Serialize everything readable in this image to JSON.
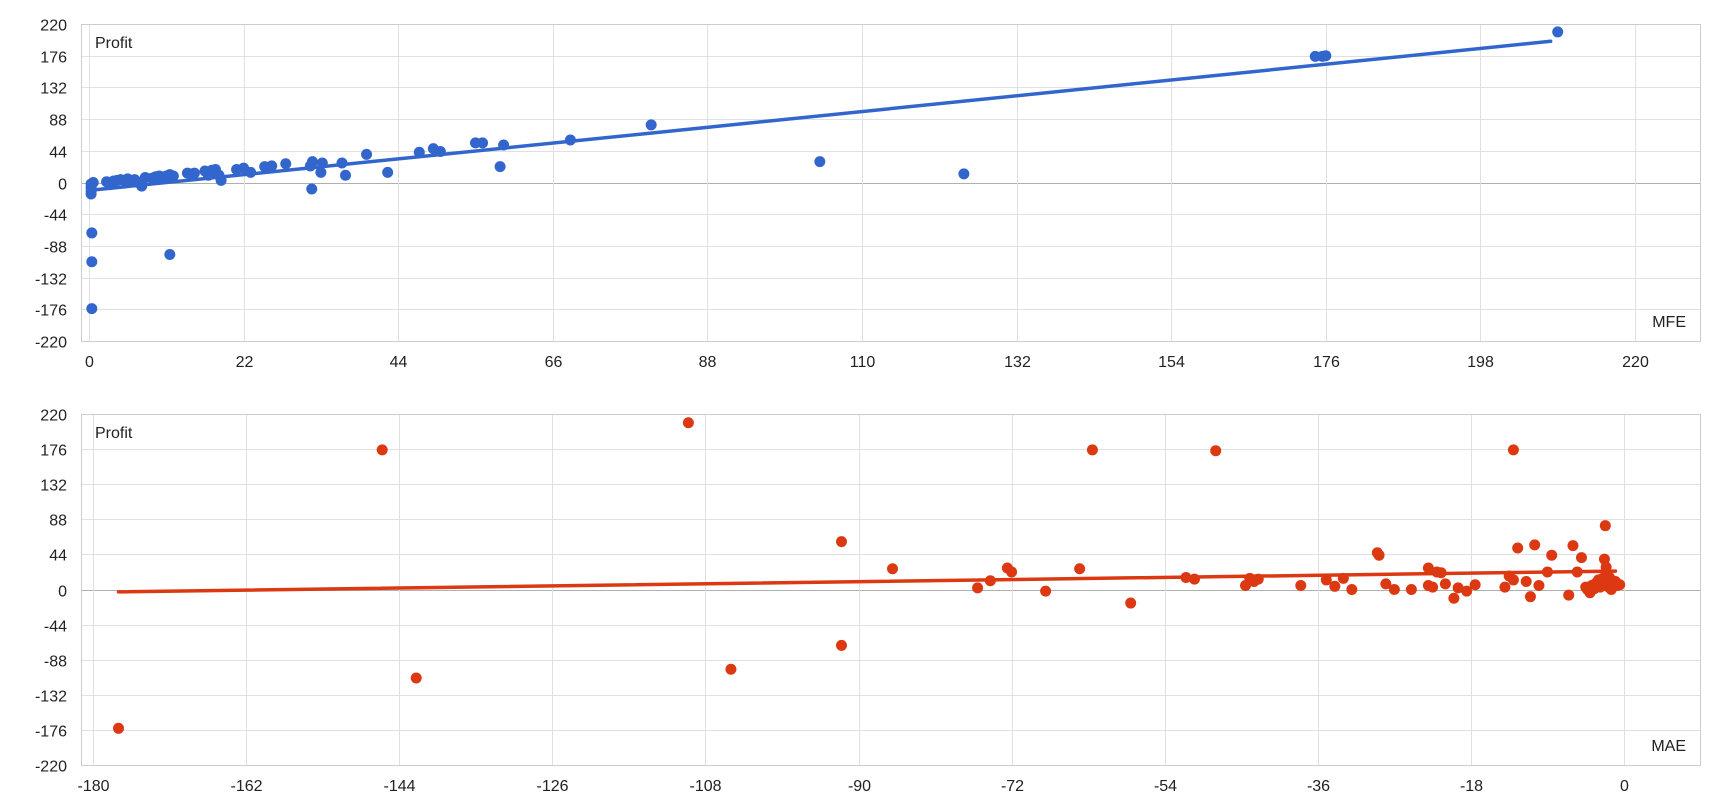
{
  "chart_data": [
    {
      "type": "scatter",
      "color": "#3366cc",
      "ylabel": "Profit",
      "xlabel": "MFE",
      "xlim": [
        0,
        220
      ],
      "ylim": [
        -220,
        220
      ],
      "xticks": [
        0,
        22,
        44,
        66,
        88,
        110,
        132,
        154,
        176,
        198,
        220
      ],
      "yticks": [
        220,
        176,
        132,
        88,
        44,
        0,
        -44,
        -88,
        -132,
        -176,
        -220
      ],
      "grid": true,
      "trendline": {
        "x": [
          0,
          208
        ],
        "y": [
          -11,
          196
        ]
      },
      "points": [
        {
          "x": 0.3,
          "y": -2
        },
        {
          "x": 0.3,
          "y": -7
        },
        {
          "x": 0.3,
          "y": -12
        },
        {
          "x": 0.3,
          "y": -16
        },
        {
          "x": 0.4,
          "y": -70
        },
        {
          "x": 0.4,
          "y": -110
        },
        {
          "x": 0.4,
          "y": -175
        },
        {
          "x": 0.6,
          "y": 0
        },
        {
          "x": 2.5,
          "y": 1
        },
        {
          "x": 3,
          "y": -3
        },
        {
          "x": 3.5,
          "y": 2
        },
        {
          "x": 4,
          "y": 3
        },
        {
          "x": 4.5,
          "y": 4
        },
        {
          "x": 5,
          "y": 3
        },
        {
          "x": 5.5,
          "y": 5
        },
        {
          "x": 6,
          "y": 2
        },
        {
          "x": 6.5,
          "y": 4
        },
        {
          "x": 7,
          "y": 0
        },
        {
          "x": 7.5,
          "y": -5
        },
        {
          "x": 8,
          "y": 7
        },
        {
          "x": 9,
          "y": 6
        },
        {
          "x": 9.5,
          "y": 8
        },
        {
          "x": 10,
          "y": 9
        },
        {
          "x": 10.5,
          "y": 6
        },
        {
          "x": 11,
          "y": 9
        },
        {
          "x": 11.5,
          "y": 11
        },
        {
          "x": 12,
          "y": 9
        },
        {
          "x": 11.5,
          "y": -100
        },
        {
          "x": 14,
          "y": 13
        },
        {
          "x": 14.5,
          "y": 12
        },
        {
          "x": 15,
          "y": 13
        },
        {
          "x": 16.5,
          "y": 16
        },
        {
          "x": 17,
          "y": 10
        },
        {
          "x": 17.5,
          "y": 17
        },
        {
          "x": 18,
          "y": 18
        },
        {
          "x": 18.5,
          "y": 10
        },
        {
          "x": 18.8,
          "y": 3
        },
        {
          "x": 21,
          "y": 18
        },
        {
          "x": 22,
          "y": 20
        },
        {
          "x": 23,
          "y": 14
        },
        {
          "x": 25,
          "y": 22
        },
        {
          "x": 26,
          "y": 23
        },
        {
          "x": 28,
          "y": 26
        },
        {
          "x": 31.5,
          "y": 23
        },
        {
          "x": 31.8,
          "y": 29
        },
        {
          "x": 31.7,
          "y": -9
        },
        {
          "x": 33,
          "y": 14
        },
        {
          "x": 33.2,
          "y": 27
        },
        {
          "x": 36,
          "y": 27
        },
        {
          "x": 36.5,
          "y": 10
        },
        {
          "x": 39.5,
          "y": 39
        },
        {
          "x": 42.5,
          "y": 14
        },
        {
          "x": 47,
          "y": 42
        },
        {
          "x": 49,
          "y": 47
        },
        {
          "x": 50,
          "y": 43
        },
        {
          "x": 55,
          "y": 55
        },
        {
          "x": 56,
          "y": 55
        },
        {
          "x": 58.5,
          "y": 22
        },
        {
          "x": 59,
          "y": 52
        },
        {
          "x": 68.5,
          "y": 59
        },
        {
          "x": 80,
          "y": 80
        },
        {
          "x": 104,
          "y": 29
        },
        {
          "x": 124.5,
          "y": 12
        },
        {
          "x": 174.5,
          "y": 175
        },
        {
          "x": 175.5,
          "y": 175
        },
        {
          "x": 176,
          "y": 176
        },
        {
          "x": 209,
          "y": 209
        }
      ]
    },
    {
      "type": "scatter",
      "color": "#dc3912",
      "ylabel": "Profit",
      "xlabel": "MAE",
      "xlim": [
        -182,
        0
      ],
      "ylim": [
        -220,
        220
      ],
      "xticks": [
        -180,
        -162,
        -144,
        -126,
        -108,
        -90,
        -72,
        -54,
        -36,
        -18,
        0
      ],
      "yticks": [
        220,
        176,
        132,
        88,
        44,
        0,
        -44,
        -88,
        -132,
        -176,
        -220
      ],
      "grid": true,
      "trendline": {
        "x": [
          -177,
          -1
        ],
        "y": [
          -3,
          23
        ]
      },
      "points": [
        {
          "x": -177,
          "y": -174
        },
        {
          "x": -146,
          "y": 175
        },
        {
          "x": -142,
          "y": -111
        },
        {
          "x": -110,
          "y": 209
        },
        {
          "x": -105,
          "y": -100
        },
        {
          "x": -92,
          "y": -70
        },
        {
          "x": -92,
          "y": 60
        },
        {
          "x": -86,
          "y": 26
        },
        {
          "x": -76,
          "y": 2
        },
        {
          "x": -74.5,
          "y": 11
        },
        {
          "x": -72.5,
          "y": 27
        },
        {
          "x": -72,
          "y": 22
        },
        {
          "x": -68,
          "y": -2
        },
        {
          "x": -64,
          "y": 26
        },
        {
          "x": -62.5,
          "y": 175
        },
        {
          "x": -58,
          "y": -17
        },
        {
          "x": -51.5,
          "y": 15
        },
        {
          "x": -50.5,
          "y": 13
        },
        {
          "x": -48,
          "y": 174
        },
        {
          "x": -44.5,
          "y": 5
        },
        {
          "x": -44,
          "y": 14
        },
        {
          "x": -43.5,
          "y": 10
        },
        {
          "x": -43,
          "y": 13
        },
        {
          "x": -38,
          "y": 5
        },
        {
          "x": -35,
          "y": 12
        },
        {
          "x": -34,
          "y": 4
        },
        {
          "x": -33,
          "y": 14
        },
        {
          "x": -32,
          "y": 0
        },
        {
          "x": -29,
          "y": 46
        },
        {
          "x": -28.8,
          "y": 43
        },
        {
          "x": -28,
          "y": 7
        },
        {
          "x": -27,
          "y": 0
        },
        {
          "x": -25,
          "y": 0
        },
        {
          "x": -23,
          "y": 27
        },
        {
          "x": -23,
          "y": 5
        },
        {
          "x": -22.5,
          "y": 3
        },
        {
          "x": -22,
          "y": 22
        },
        {
          "x": -21.5,
          "y": 21
        },
        {
          "x": -21,
          "y": 7
        },
        {
          "x": -20,
          "y": -11
        },
        {
          "x": -19.5,
          "y": 2
        },
        {
          "x": -18.5,
          "y": -2
        },
        {
          "x": -17.5,
          "y": 6
        },
        {
          "x": -14,
          "y": 3
        },
        {
          "x": -13.5,
          "y": 17
        },
        {
          "x": -13,
          "y": 12
        },
        {
          "x": -13,
          "y": 175
        },
        {
          "x": -12.5,
          "y": 52
        },
        {
          "x": -11.5,
          "y": 10
        },
        {
          "x": -11,
          "y": -9
        },
        {
          "x": -10.5,
          "y": 56
        },
        {
          "x": -10,
          "y": 5
        },
        {
          "x": -9,
          "y": 22
        },
        {
          "x": -8.5,
          "y": 43
        },
        {
          "x": -6.5,
          "y": -7
        },
        {
          "x": -6,
          "y": 55
        },
        {
          "x": -5.5,
          "y": 22
        },
        {
          "x": -5,
          "y": 40
        },
        {
          "x": -4.5,
          "y": 3
        },
        {
          "x": -4.3,
          "y": 0
        },
        {
          "x": -4,
          "y": -4
        },
        {
          "x": -3.8,
          "y": 5
        },
        {
          "x": -3.5,
          "y": 1
        },
        {
          "x": -3.3,
          "y": 8
        },
        {
          "x": -3,
          "y": 12
        },
        {
          "x": -2.8,
          "y": 3
        },
        {
          "x": -2.5,
          "y": 14
        },
        {
          "x": -2.4,
          "y": 9
        },
        {
          "x": -2.3,
          "y": 38
        },
        {
          "x": -2.2,
          "y": 80
        },
        {
          "x": -2.1,
          "y": 28
        },
        {
          "x": -2,
          "y": 20
        },
        {
          "x": -1.8,
          "y": 3
        },
        {
          "x": -1.7,
          "y": 15
        },
        {
          "x": -1.5,
          "y": 0
        },
        {
          "x": -1.2,
          "y": 7
        },
        {
          "x": -1,
          "y": 10
        },
        {
          "x": -0.8,
          "y": 5
        },
        {
          "x": -0.5,
          "y": 6
        }
      ]
    }
  ]
}
